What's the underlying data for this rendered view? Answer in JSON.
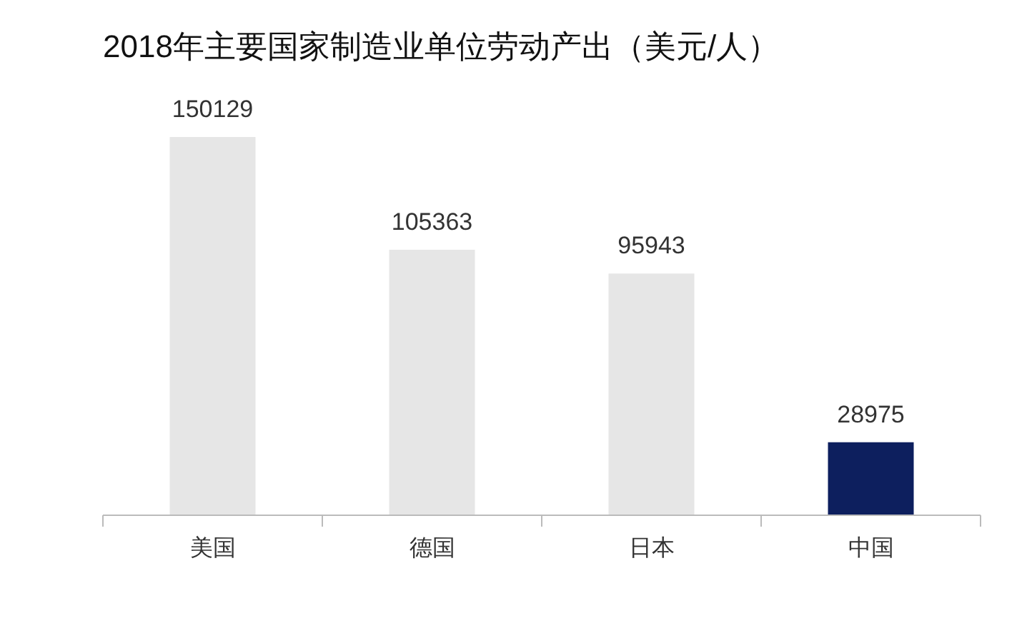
{
  "chart_data": {
    "type": "bar",
    "title": "2018年主要国家制造业单位劳动产出（美元/人）",
    "categories": [
      "美国",
      "德国",
      "日本",
      "中国"
    ],
    "values": [
      150129,
      105363,
      95943,
      28975
    ],
    "colors": [
      "#e6e6e6",
      "#e6e6e6",
      "#e6e6e6",
      "#0d1f5e"
    ],
    "data_labels": true
  }
}
